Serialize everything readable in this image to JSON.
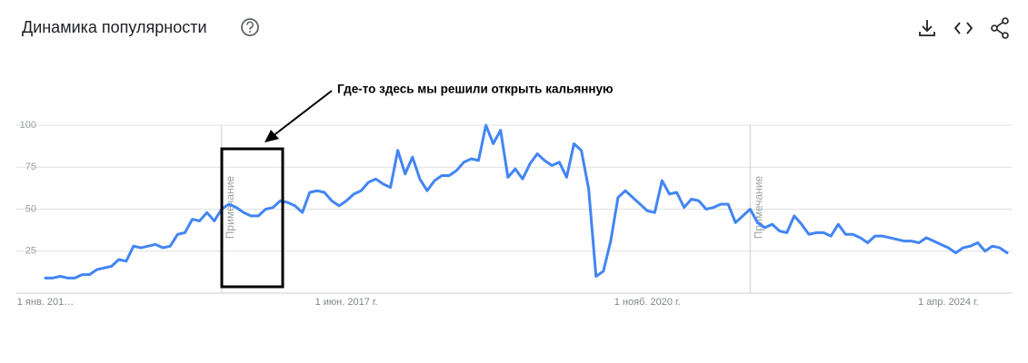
{
  "header": {
    "title": "Динамика популярности"
  },
  "chart_data": {
    "type": "line",
    "annotation": "Где-то здесь мы решили открыть кальянную",
    "categories": [
      "1 янв. 201…",
      null,
      null,
      null,
      null,
      null,
      null,
      null,
      null,
      null,
      null,
      null,
      null,
      null,
      null,
      null,
      null,
      null,
      null,
      null,
      null,
      null,
      null,
      null,
      null,
      null,
      null,
      null,
      null,
      null,
      null,
      null,
      null,
      null,
      null,
      null,
      null,
      null,
      null,
      null,
      null,
      "1 июн. 2017 г.",
      null,
      null,
      null,
      null,
      null,
      null,
      null,
      null,
      null,
      null,
      null,
      null,
      null,
      null,
      null,
      null,
      null,
      null,
      null,
      null,
      null,
      null,
      null,
      null,
      null,
      null,
      null,
      null,
      null,
      null,
      null,
      null,
      null,
      null,
      null,
      null,
      null,
      null,
      null,
      null,
      "1 нояб. 2020 г.",
      null,
      null,
      null,
      null,
      null,
      null,
      null,
      null,
      null,
      null,
      null,
      null,
      null,
      null,
      null,
      null,
      null,
      null,
      null,
      null,
      null,
      null,
      null,
      null,
      null,
      null,
      null,
      null,
      null,
      null,
      null,
      null,
      null,
      null,
      null,
      null,
      null,
      null,
      null,
      null,
      "1 апр. 2024 г.",
      null,
      null,
      null,
      null,
      null,
      null,
      null,
      null
    ],
    "series": [
      {
        "color": "#4285f4",
        "values": [
          9,
          9,
          10,
          9,
          9,
          11,
          11,
          14,
          15,
          16,
          20,
          19,
          28,
          27,
          28,
          29,
          27,
          28,
          35,
          36,
          44,
          43,
          48,
          43,
          50,
          53,
          51,
          48,
          46,
          46,
          50,
          51,
          55,
          54,
          52,
          48,
          60,
          61,
          60,
          55,
          52,
          55,
          59,
          61,
          66,
          68,
          65,
          63,
          85,
          71,
          81,
          68,
          61,
          67,
          70,
          70,
          73,
          78,
          80,
          79,
          100,
          89,
          97,
          69,
          74,
          68,
          77,
          83,
          79,
          76,
          78,
          69,
          89,
          85,
          62,
          10,
          13,
          31,
          57,
          61,
          57,
          53,
          49,
          48,
          67,
          59,
          60,
          51,
          56,
          55,
          50,
          51,
          53,
          53,
          42,
          46,
          50,
          42,
          39,
          41,
          37,
          36,
          46,
          41,
          35,
          36,
          36,
          34,
          41,
          35,
          35,
          33,
          30,
          34,
          34,
          33,
          32,
          31,
          31,
          30,
          33,
          31,
          29,
          27,
          24,
          27,
          28,
          30,
          25,
          28,
          27,
          24
        ]
      }
    ],
    "notes": [
      {
        "label": "Примечание",
        "category_index": 24
      },
      {
        "label": "Примечание",
        "category_index": 96
      }
    ],
    "ylim": [
      0,
      100
    ],
    "yticks": [
      25,
      50,
      75,
      100
    ],
    "grid": true
  }
}
